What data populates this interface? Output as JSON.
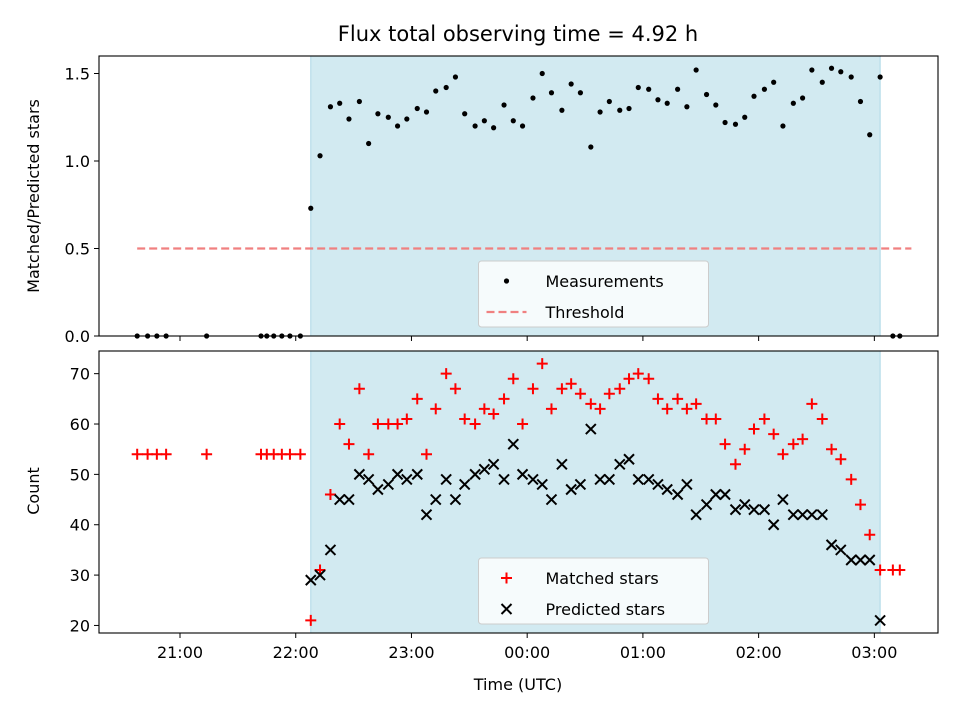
{
  "chart_data": [
    {
      "type": "scatter",
      "title": "Flux total observing time = 4.92 h",
      "ylabel": "Matched/Predicted stars",
      "xlabel": "",
      "x_ticks": [
        "21:00",
        "22:00",
        "23:00",
        "00:00",
        "01:00",
        "02:00",
        "03:00"
      ],
      "x_tick_values": [
        21.0,
        22.0,
        23.0,
        24.0,
        25.0,
        26.0,
        27.0
      ],
      "xlim": [
        20.3,
        27.55
      ],
      "ylim": [
        0,
        1.6
      ],
      "y_ticks": [
        "0.0",
        "0.5",
        "1.0",
        "1.5"
      ],
      "y_tick_values": [
        0.0,
        0.5,
        1.0,
        1.5
      ],
      "shaded_span": [
        22.13,
        27.05
      ],
      "shade_color": "#add8e6",
      "legend_position": "lower center",
      "series": [
        {
          "name": "Measurements",
          "marker": "dot",
          "color": "#000000",
          "x": [
            20.63,
            20.72,
            20.8,
            20.88,
            21.23,
            21.7,
            21.75,
            21.81,
            21.88,
            21.95,
            22.04,
            22.13,
            22.21,
            22.3,
            22.38,
            22.46,
            22.55,
            22.63,
            22.71,
            22.8,
            22.88,
            22.96,
            23.05,
            23.13,
            23.21,
            23.3,
            23.38,
            23.46,
            23.55,
            23.63,
            23.71,
            23.8,
            23.88,
            23.96,
            24.05,
            24.13,
            24.21,
            24.3,
            24.38,
            24.46,
            24.55,
            24.63,
            24.71,
            24.8,
            24.88,
            24.96,
            25.05,
            25.13,
            25.21,
            25.3,
            25.38,
            25.46,
            25.55,
            25.63,
            25.71,
            25.8,
            25.88,
            25.96,
            26.05,
            26.13,
            26.21,
            26.3,
            26.38,
            26.46,
            26.55,
            26.63,
            26.71,
            26.8,
            26.88,
            26.96,
            27.05,
            27.16,
            27.22
          ],
          "y": [
            0,
            0,
            0,
            0,
            0,
            0,
            0,
            0,
            0,
            0,
            0,
            0.73,
            1.03,
            1.31,
            1.33,
            1.24,
            1.34,
            1.1,
            1.27,
            1.25,
            1.2,
            1.24,
            1.3,
            1.28,
            1.4,
            1.42,
            1.48,
            1.27,
            1.2,
            1.23,
            1.19,
            1.32,
            1.23,
            1.2,
            1.36,
            1.5,
            1.39,
            1.29,
            1.44,
            1.39,
            1.08,
            1.28,
            1.34,
            1.29,
            1.3,
            1.42,
            1.41,
            1.35,
            1.33,
            1.41,
            1.31,
            1.52,
            1.38,
            1.32,
            1.22,
            1.21,
            1.25,
            1.37,
            1.41,
            1.45,
            1.2,
            1.33,
            1.36,
            1.52,
            1.45,
            1.53,
            1.51,
            1.48,
            1.34,
            1.15,
            1.48,
            0,
            0
          ]
        },
        {
          "name": "Threshold",
          "marker": "dashed-line",
          "color": "#f08080",
          "x": [
            20.63,
            27.32
          ],
          "y": [
            0.5,
            0.5
          ]
        }
      ]
    },
    {
      "type": "scatter",
      "title": "",
      "ylabel": "Count",
      "xlabel": "Time (UTC)",
      "x_ticks": [
        "21:00",
        "22:00",
        "23:00",
        "00:00",
        "01:00",
        "02:00",
        "03:00"
      ],
      "x_tick_values": [
        21.0,
        22.0,
        23.0,
        24.0,
        25.0,
        26.0,
        27.0
      ],
      "xlim": [
        20.3,
        27.55
      ],
      "ylim": [
        18.5,
        74.5
      ],
      "y_ticks": [
        "20",
        "30",
        "40",
        "50",
        "60",
        "70"
      ],
      "y_tick_values": [
        20,
        30,
        40,
        50,
        60,
        70
      ],
      "shaded_span": [
        22.13,
        27.05
      ],
      "shade_color": "#add8e6",
      "legend_position": "lower center",
      "series": [
        {
          "name": "Matched stars",
          "marker": "plus",
          "color": "#ff0000",
          "x": [
            20.63,
            20.72,
            20.8,
            20.88,
            21.23,
            21.7,
            21.75,
            21.81,
            21.88,
            21.95,
            22.04,
            22.13,
            22.21,
            22.3,
            22.38,
            22.46,
            22.55,
            22.63,
            22.71,
            22.8,
            22.88,
            22.96,
            23.05,
            23.13,
            23.21,
            23.3,
            23.38,
            23.46,
            23.55,
            23.63,
            23.71,
            23.8,
            23.88,
            23.96,
            24.05,
            24.13,
            24.21,
            24.3,
            24.38,
            24.46,
            24.55,
            24.63,
            24.71,
            24.8,
            24.88,
            24.96,
            25.05,
            25.13,
            25.21,
            25.3,
            25.38,
            25.46,
            25.55,
            25.63,
            25.71,
            25.8,
            25.88,
            25.96,
            26.05,
            26.13,
            26.21,
            26.3,
            26.38,
            26.46,
            26.55,
            26.63,
            26.71,
            26.8,
            26.88,
            26.96,
            27.05,
            27.16,
            27.22
          ],
          "y": [
            54,
            54,
            54,
            54,
            54,
            54,
            54,
            54,
            54,
            54,
            54,
            21,
            31,
            46,
            60,
            56,
            67,
            54,
            60,
            60,
            60,
            61,
            65,
            54,
            63,
            70,
            67,
            61,
            60,
            63,
            62,
            65,
            69,
            60,
            67,
            72,
            63,
            67,
            68,
            66,
            64,
            63,
            66,
            67,
            69,
            70,
            69,
            65,
            63,
            65,
            63,
            64,
            61,
            61,
            56,
            52,
            55,
            59,
            61,
            58,
            54,
            56,
            57,
            64,
            61,
            55,
            53,
            49,
            44,
            38,
            31,
            31,
            31
          ]
        },
        {
          "name": "Predicted stars",
          "marker": "x",
          "color": "#000000",
          "x": [
            22.13,
            22.21,
            22.3,
            22.38,
            22.46,
            22.55,
            22.63,
            22.71,
            22.8,
            22.88,
            22.96,
            23.05,
            23.13,
            23.21,
            23.3,
            23.38,
            23.46,
            23.55,
            23.63,
            23.71,
            23.8,
            23.88,
            23.96,
            24.05,
            24.13,
            24.21,
            24.3,
            24.38,
            24.46,
            24.55,
            24.63,
            24.71,
            24.8,
            24.88,
            24.96,
            25.05,
            25.13,
            25.21,
            25.3,
            25.38,
            25.46,
            25.55,
            25.63,
            25.71,
            25.8,
            25.88,
            25.96,
            26.05,
            26.13,
            26.21,
            26.3,
            26.38,
            26.46,
            26.55,
            26.63,
            26.71,
            26.8,
            26.88,
            26.96,
            27.05
          ],
          "y": [
            29,
            30,
            35,
            45,
            45,
            50,
            49,
            47,
            48,
            50,
            49,
            50,
            42,
            45,
            49,
            45,
            48,
            50,
            51,
            52,
            49,
            56,
            50,
            49,
            48,
            45,
            52,
            47,
            48,
            59,
            49,
            49,
            52,
            53,
            49,
            49,
            48,
            47,
            46,
            48,
            42,
            44,
            46,
            46,
            43,
            44,
            43,
            43,
            40,
            45,
            42,
            42,
            42,
            42,
            36,
            35,
            33,
            33,
            33,
            21
          ]
        }
      ]
    }
  ]
}
